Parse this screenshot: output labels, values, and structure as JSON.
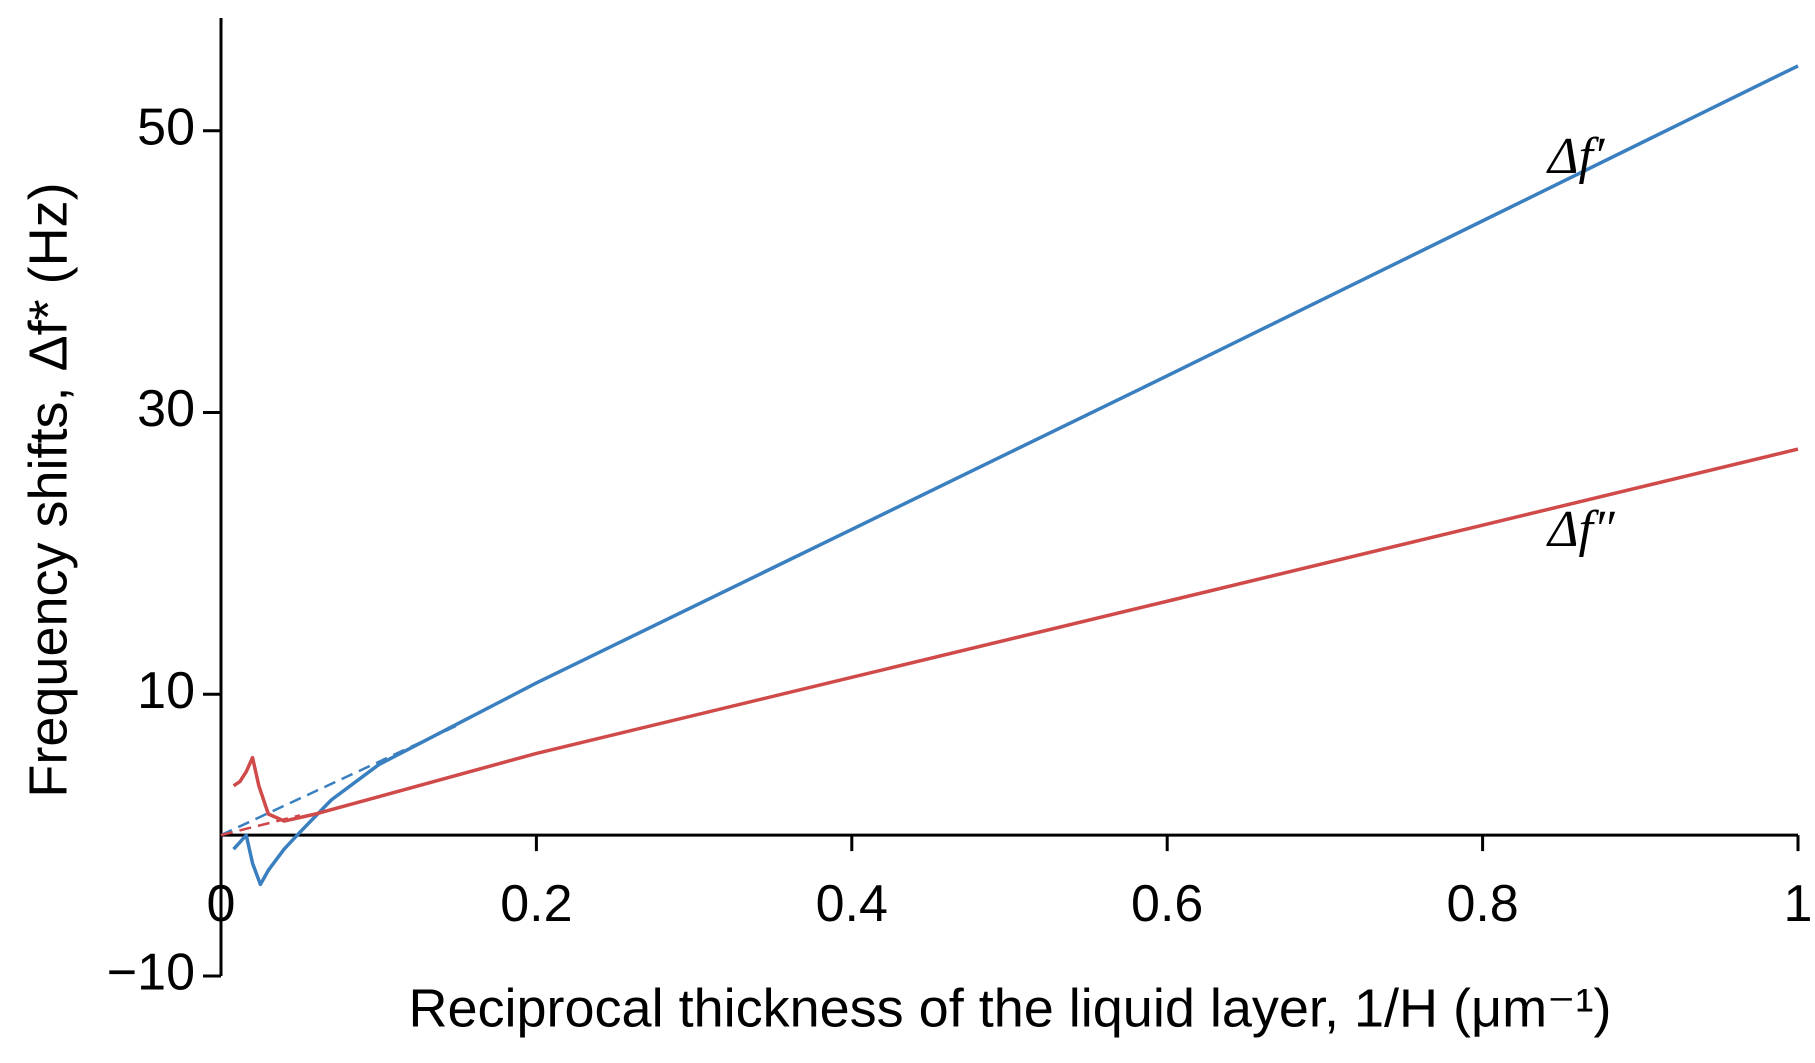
{
  "chart_data": {
    "type": "line",
    "x_label": "Reciprocal thickness of the liquid layer, 1/H (μm⁻¹)",
    "y_label": "Frequency shifts, Δf* (Hz)",
    "xlim": [
      0,
      1
    ],
    "ylim": [
      -10,
      58
    ],
    "xticks": [
      0,
      0.2,
      0.4,
      0.6,
      0.8,
      1
    ],
    "yticks": [
      {
        "value": -10,
        "label": "−10"
      },
      10,
      30,
      50
    ],
    "grid": false,
    "series": [
      {
        "name": "Δf′",
        "color": "#3a7fbf",
        "x": [
          0.008,
          0.012,
          0.016,
          0.02,
          0.025,
          0.03,
          0.04,
          0.05,
          0.07,
          0.1,
          0.15,
          0.2,
          0.4,
          0.6,
          0.8,
          1
        ],
        "values": [
          -1,
          -0.5,
          0,
          -2,
          -3.5,
          -2.5,
          -1,
          0.2,
          2.5,
          5,
          7.9,
          10.8,
          21.7,
          32.6,
          43.6,
          54.6
        ]
      },
      {
        "name": "Δf″",
        "color": "#d04a4a",
        "x": [
          0.008,
          0.012,
          0.016,
          0.02,
          0.024,
          0.03,
          0.04,
          0.06,
          0.2,
          0.4,
          0.6,
          0.8,
          1
        ],
        "values": [
          3.5,
          3.8,
          4.5,
          5.5,
          3.5,
          1.5,
          1,
          1.5,
          5.8,
          11.2,
          16.6,
          22,
          27.4
        ]
      },
      {
        "color": "#3a7fbf",
        "dashed": true,
        "x": [
          0,
          0.15
        ],
        "values": [
          0,
          7.8
        ]
      },
      {
        "color": "#d04a4a",
        "dashed": true,
        "x": [
          0,
          0.05
        ],
        "values": [
          0,
          1.4
        ]
      }
    ]
  }
}
